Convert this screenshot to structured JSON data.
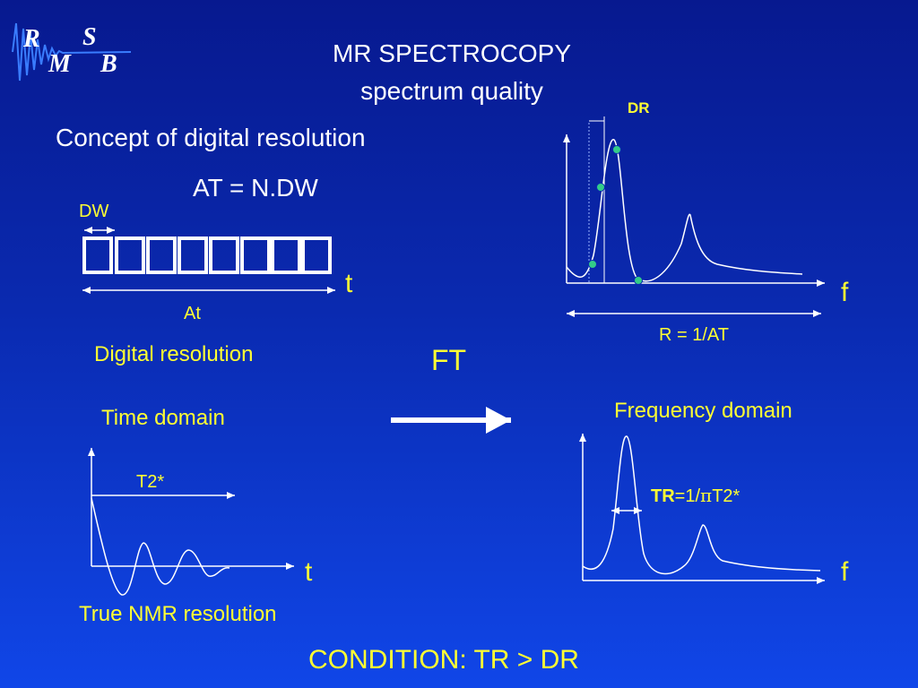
{
  "logo": {
    "letters": [
      "R",
      "S",
      "M",
      "B"
    ]
  },
  "header": {
    "title": "MR SPECTROCOPY",
    "subtitle": "spectrum quality"
  },
  "left": {
    "concept_heading": "Concept of digital resolution",
    "formula_at": "AT = N.DW",
    "dw_label": "DW",
    "t_label": "t",
    "at_label": "At",
    "digital_resolution": "Digital resolution",
    "time_domain": "Time domain",
    "t2_label": "T2*",
    "t_label_bottom": "t",
    "true_nmr": "True NMR resolution"
  },
  "right": {
    "dr_label": "DR",
    "f_label_top": "f",
    "r_formula": "R = 1/AT",
    "frequency_domain": "Frequency domain",
    "tr_bold": "TR",
    "tr_eq": "=1/",
    "tr_pi": "π",
    "tr_tail": "T2*",
    "f_label_bottom": "f"
  },
  "ft_label": "FT",
  "condition": "CONDITION: TR > DR",
  "colors": {
    "background_top": "#07198f",
    "background_bottom": "#1046e8",
    "label_yellow": "#ffff33",
    "text_white": "#ffffff",
    "sample_point": "#33cc88"
  }
}
